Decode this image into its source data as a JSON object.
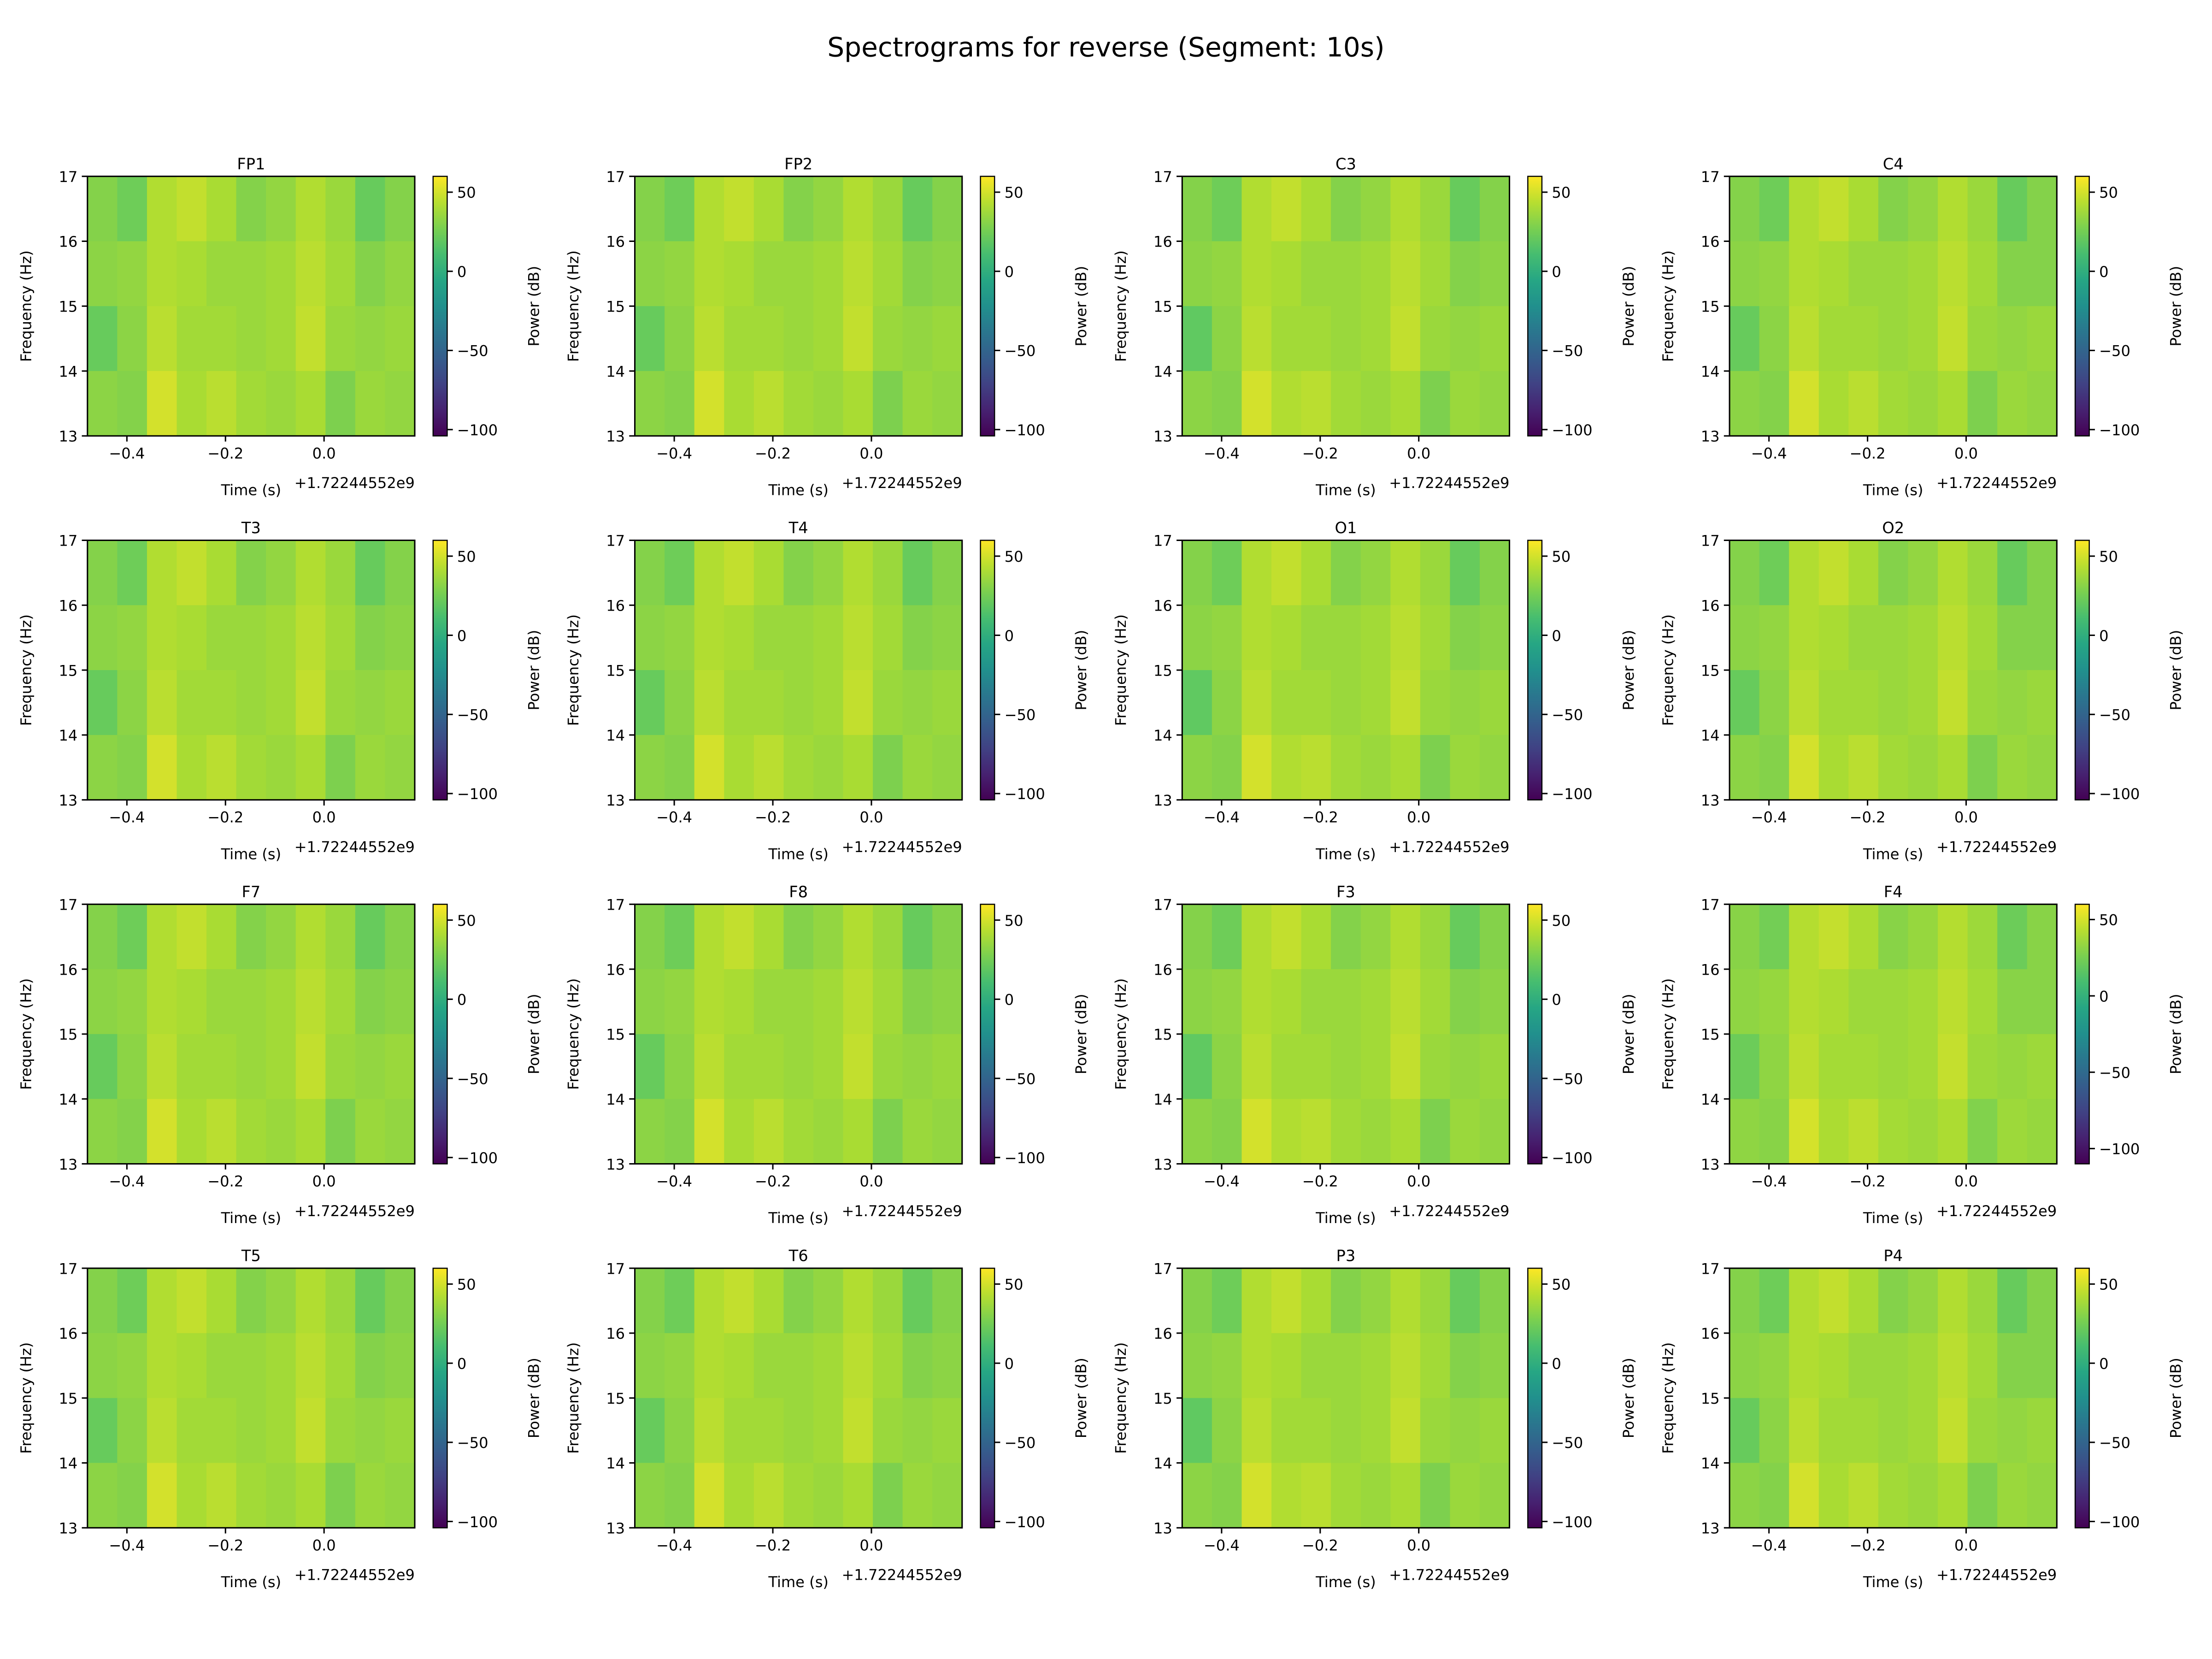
{
  "figure": {
    "suptitle": "Spectrograms for reverse (Segment: 10s)"
  },
  "shared": {
    "type": "heatmap",
    "colormap": "viridis",
    "xlabel": "Time (s)",
    "x_offset": "+1.72244552e9",
    "ylabel": "Frequency (Hz)",
    "colorbar_label": "Power (dB)",
    "xlim": [
      -0.48,
      0.184
    ],
    "ylim": [
      13,
      17
    ],
    "x_ticks": [
      -0.4,
      -0.2,
      0.0
    ],
    "x_tick_labels": [
      "−0.4",
      "−0.2",
      "0.0"
    ],
    "y_ticks": [
      13,
      14,
      15,
      16,
      17
    ],
    "y_tick_labels": [
      "13",
      "14",
      "15",
      "16",
      "17"
    ],
    "cbar_ticks": [
      -100,
      -50,
      0,
      50
    ],
    "cbar_tick_labels": [
      "−100",
      "−50",
      "0",
      "50"
    ],
    "x": [
      -0.45,
      -0.39,
      -0.33,
      -0.27,
      -0.21,
      -0.15,
      -0.09,
      -0.03,
      0.03,
      0.09,
      0.15
    ],
    "y": [
      16.5,
      15.5,
      14.5,
      13.5
    ]
  },
  "chart_data": [
    {
      "title": "FP1",
      "clim": [
        -104,
        60
      ],
      "z": [
        [
          30,
          24,
          42,
          46,
          40,
          30,
          34,
          42,
          36,
          22,
          30
        ],
        [
          32,
          34,
          42,
          40,
          36,
          36,
          38,
          44,
          38,
          30,
          34
        ],
        [
          22,
          32,
          44,
          38,
          38,
          36,
          38,
          46,
          36,
          34,
          36
        ],
        [
          32,
          30,
          50,
          40,
          44,
          38,
          36,
          40,
          28,
          36,
          34
        ]
      ]
    },
    {
      "title": "FP2",
      "clim": [
        -104,
        60
      ],
      "z": [
        [
          30,
          24,
          42,
          46,
          40,
          30,
          34,
          42,
          36,
          22,
          30
        ],
        [
          32,
          34,
          42,
          40,
          36,
          36,
          38,
          44,
          38,
          30,
          32
        ],
        [
          22,
          32,
          44,
          38,
          38,
          36,
          38,
          46,
          36,
          34,
          36
        ],
        [
          32,
          30,
          50,
          40,
          44,
          38,
          36,
          40,
          28,
          36,
          34
        ]
      ]
    },
    {
      "title": "C3",
      "clim": [
        -104,
        60
      ],
      "z": [
        [
          30,
          24,
          42,
          46,
          40,
          30,
          34,
          42,
          36,
          22,
          30
        ],
        [
          32,
          34,
          42,
          40,
          36,
          36,
          38,
          44,
          38,
          30,
          32
        ],
        [
          20,
          32,
          44,
          38,
          38,
          36,
          38,
          46,
          36,
          34,
          36
        ],
        [
          32,
          30,
          50,
          42,
          44,
          38,
          36,
          40,
          28,
          36,
          34
        ]
      ]
    },
    {
      "title": "C4",
      "clim": [
        -104,
        60
      ],
      "z": [
        [
          30,
          24,
          42,
          46,
          40,
          30,
          34,
          42,
          36,
          22,
          30
        ],
        [
          32,
          34,
          42,
          40,
          36,
          36,
          38,
          44,
          38,
          30,
          30
        ],
        [
          22,
          32,
          44,
          38,
          38,
          36,
          38,
          46,
          36,
          34,
          36
        ],
        [
          32,
          30,
          50,
          40,
          44,
          38,
          36,
          40,
          28,
          36,
          34
        ]
      ]
    },
    {
      "title": "T3",
      "clim": [
        -104,
        60
      ],
      "z": [
        [
          30,
          24,
          42,
          46,
          40,
          30,
          34,
          42,
          36,
          22,
          30
        ],
        [
          32,
          34,
          42,
          40,
          36,
          36,
          38,
          44,
          38,
          30,
          32
        ],
        [
          22,
          32,
          44,
          38,
          38,
          36,
          38,
          46,
          36,
          34,
          36
        ],
        [
          32,
          30,
          50,
          40,
          44,
          38,
          36,
          40,
          28,
          36,
          34
        ]
      ]
    },
    {
      "title": "T4",
      "clim": [
        -104,
        60
      ],
      "z": [
        [
          30,
          24,
          42,
          46,
          40,
          30,
          34,
          42,
          36,
          22,
          30
        ],
        [
          32,
          34,
          42,
          40,
          36,
          36,
          38,
          44,
          38,
          30,
          32
        ],
        [
          22,
          32,
          44,
          38,
          38,
          36,
          38,
          46,
          36,
          34,
          36
        ],
        [
          32,
          30,
          50,
          40,
          44,
          38,
          36,
          40,
          28,
          36,
          34
        ]
      ]
    },
    {
      "title": "O1",
      "clim": [
        -104,
        60
      ],
      "z": [
        [
          30,
          24,
          42,
          46,
          40,
          30,
          34,
          42,
          36,
          22,
          30
        ],
        [
          32,
          34,
          42,
          40,
          36,
          36,
          38,
          44,
          38,
          30,
          32
        ],
        [
          20,
          32,
          44,
          38,
          38,
          36,
          38,
          46,
          36,
          34,
          36
        ],
        [
          32,
          30,
          50,
          42,
          44,
          38,
          36,
          40,
          28,
          36,
          34
        ]
      ]
    },
    {
      "title": "O2",
      "clim": [
        -104,
        60
      ],
      "z": [
        [
          30,
          24,
          42,
          46,
          40,
          30,
          34,
          42,
          36,
          22,
          30
        ],
        [
          32,
          34,
          42,
          40,
          36,
          36,
          38,
          44,
          38,
          30,
          30
        ],
        [
          22,
          32,
          44,
          38,
          38,
          36,
          38,
          46,
          36,
          34,
          36
        ],
        [
          32,
          30,
          50,
          40,
          44,
          38,
          36,
          40,
          28,
          36,
          34
        ]
      ]
    },
    {
      "title": "F7",
      "clim": [
        -104,
        60
      ],
      "z": [
        [
          30,
          24,
          42,
          46,
          40,
          30,
          34,
          42,
          36,
          22,
          30
        ],
        [
          32,
          34,
          42,
          40,
          36,
          36,
          38,
          44,
          38,
          30,
          32
        ],
        [
          22,
          32,
          44,
          38,
          38,
          36,
          38,
          46,
          36,
          34,
          36
        ],
        [
          32,
          30,
          50,
          40,
          44,
          38,
          36,
          40,
          28,
          36,
          34
        ]
      ]
    },
    {
      "title": "F8",
      "clim": [
        -104,
        60
      ],
      "z": [
        [
          30,
          24,
          42,
          46,
          40,
          30,
          34,
          42,
          36,
          22,
          30
        ],
        [
          32,
          34,
          42,
          40,
          36,
          36,
          38,
          44,
          38,
          30,
          32
        ],
        [
          22,
          32,
          44,
          38,
          38,
          36,
          38,
          46,
          36,
          34,
          36
        ],
        [
          32,
          30,
          50,
          40,
          44,
          38,
          36,
          40,
          28,
          36,
          34
        ]
      ]
    },
    {
      "title": "F3",
      "clim": [
        -104,
        60
      ],
      "z": [
        [
          30,
          24,
          42,
          46,
          40,
          30,
          34,
          42,
          36,
          22,
          30
        ],
        [
          32,
          34,
          42,
          40,
          36,
          36,
          38,
          44,
          38,
          30,
          32
        ],
        [
          20,
          32,
          44,
          38,
          38,
          36,
          38,
          46,
          36,
          34,
          36
        ],
        [
          32,
          30,
          50,
          42,
          44,
          38,
          36,
          40,
          28,
          36,
          34
        ]
      ]
    },
    {
      "title": "F4",
      "clim": [
        -110,
        60
      ],
      "z": [
        [
          30,
          24,
          42,
          46,
          40,
          30,
          34,
          42,
          36,
          22,
          30
        ],
        [
          32,
          34,
          42,
          40,
          36,
          36,
          38,
          44,
          38,
          30,
          30
        ],
        [
          22,
          32,
          44,
          38,
          38,
          36,
          38,
          46,
          36,
          34,
          36
        ],
        [
          32,
          30,
          50,
          40,
          44,
          38,
          36,
          40,
          28,
          36,
          34
        ]
      ]
    },
    {
      "title": "T5",
      "clim": [
        -104,
        60
      ],
      "z": [
        [
          30,
          24,
          42,
          46,
          40,
          30,
          34,
          42,
          36,
          22,
          30
        ],
        [
          32,
          34,
          42,
          40,
          36,
          36,
          38,
          44,
          38,
          30,
          32
        ],
        [
          22,
          32,
          44,
          38,
          38,
          36,
          38,
          46,
          36,
          34,
          36
        ],
        [
          32,
          30,
          50,
          40,
          44,
          38,
          36,
          40,
          28,
          36,
          34
        ]
      ]
    },
    {
      "title": "T6",
      "clim": [
        -104,
        60
      ],
      "z": [
        [
          30,
          24,
          42,
          46,
          40,
          30,
          34,
          42,
          36,
          22,
          30
        ],
        [
          32,
          34,
          42,
          40,
          36,
          36,
          38,
          44,
          38,
          30,
          32
        ],
        [
          22,
          32,
          44,
          38,
          38,
          36,
          38,
          46,
          36,
          34,
          36
        ],
        [
          32,
          30,
          50,
          40,
          44,
          38,
          36,
          40,
          28,
          36,
          34
        ]
      ]
    },
    {
      "title": "P3",
      "clim": [
        -104,
        60
      ],
      "z": [
        [
          30,
          24,
          42,
          46,
          40,
          30,
          34,
          42,
          36,
          22,
          30
        ],
        [
          32,
          34,
          42,
          40,
          36,
          36,
          38,
          44,
          38,
          30,
          32
        ],
        [
          20,
          32,
          44,
          38,
          38,
          36,
          38,
          46,
          36,
          34,
          36
        ],
        [
          32,
          30,
          50,
          42,
          44,
          38,
          36,
          40,
          28,
          36,
          34
        ]
      ]
    },
    {
      "title": "P4",
      "clim": [
        -104,
        60
      ],
      "z": [
        [
          30,
          24,
          42,
          46,
          40,
          30,
          34,
          42,
          36,
          22,
          30
        ],
        [
          32,
          34,
          42,
          40,
          36,
          36,
          38,
          44,
          38,
          30,
          30
        ],
        [
          22,
          32,
          44,
          38,
          38,
          36,
          38,
          46,
          36,
          34,
          36
        ],
        [
          32,
          30,
          50,
          40,
          44,
          38,
          36,
          40,
          28,
          36,
          34
        ]
      ]
    }
  ]
}
